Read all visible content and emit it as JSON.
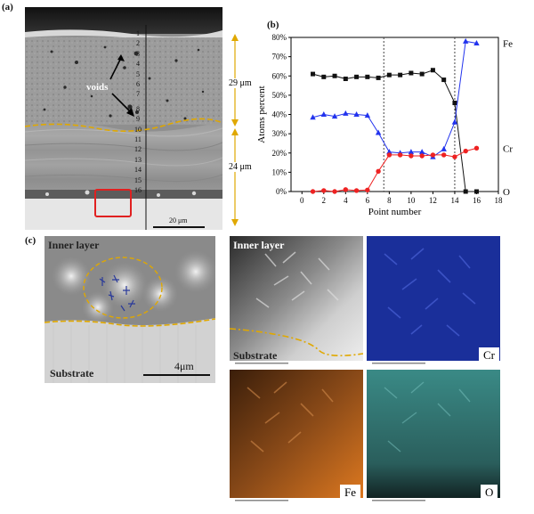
{
  "panel_a": {
    "label": "(a)",
    "voids_label": "voids",
    "point_numbers": [
      "1",
      "2",
      "3",
      "4",
      "5",
      "6",
      "7",
      "8",
      "9",
      "10",
      "11",
      "12",
      "13",
      "14",
      "15",
      "16"
    ],
    "outer_thickness": "29 μm",
    "inner_thickness": "24 μm",
    "scale_bar": "20 μm"
  },
  "panel_b": {
    "label": "(b)"
  },
  "chart_data": {
    "type": "line",
    "xlabel": "Point number",
    "ylabel": "Atoms percent",
    "xlim": [
      -1,
      18
    ],
    "ylim": [
      0,
      80
    ],
    "xticks": [
      0,
      2,
      4,
      6,
      8,
      10,
      12,
      14,
      16,
      18
    ],
    "yticks": [
      "0%",
      "10%",
      "20%",
      "30%",
      "40%",
      "50%",
      "60%",
      "70%",
      "80%"
    ],
    "x": [
      1,
      2,
      3,
      4,
      5,
      6,
      7,
      8,
      9,
      10,
      11,
      12,
      13,
      14,
      15,
      16
    ],
    "dotted_verticals": [
      7.5,
      14
    ],
    "series": [
      {
        "name": "O",
        "color": "#111111",
        "marker": "square",
        "values": [
          61,
          59.5,
          60,
          58.5,
          59.5,
          59.5,
          59,
          60.5,
          60.5,
          61.5,
          61,
          63,
          58,
          46,
          0,
          0
        ]
      },
      {
        "name": "Fe",
        "color": "#2233ee",
        "marker": "triangle",
        "values": [
          38.5,
          40,
          39,
          40.5,
          40,
          39.5,
          30.5,
          20.5,
          20,
          20.5,
          20.5,
          18,
          22,
          36,
          78,
          77
        ]
      },
      {
        "name": "Cr",
        "color": "#ee2222",
        "marker": "circle",
        "values": [
          0,
          0.5,
          0,
          1,
          0.5,
          0.8,
          10.5,
          19,
          19,
          18.5,
          18.5,
          19,
          19,
          18,
          21,
          22.5
        ]
      }
    ]
  },
  "panel_c": {
    "label": "(c)",
    "sem_inner_layer": "Inner layer",
    "sem_substrate": "Substrate",
    "sem_scale": "4μm",
    "tem_inner_layer": "Inner layer",
    "tem_substrate": "Substrate",
    "map_cr": "Cr",
    "map_fe": "Fe",
    "map_o": "O"
  },
  "colors": {
    "fe_map": "#b8611e",
    "cr_map": "#1a2f9a",
    "o_map": "#3a8a86",
    "boundary": "#e0a800",
    "highlight_box": "#e02020"
  }
}
